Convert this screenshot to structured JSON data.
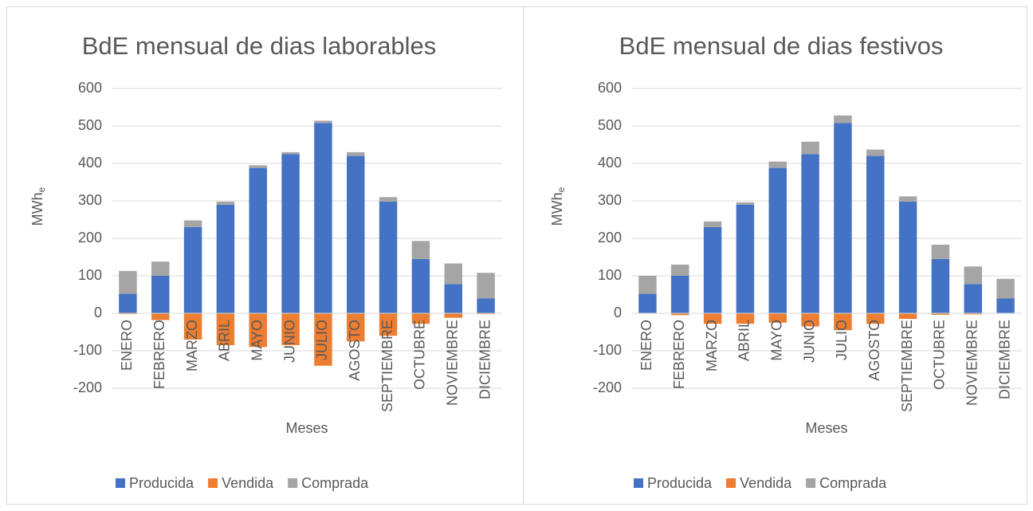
{
  "chart_data": [
    {
      "type": "bar",
      "title": "BdE mensual de dias laborables",
      "x_label": "Meses",
      "y_label": {
        "text": "MWh",
        "subscript": "e"
      },
      "categories": [
        "ENERO",
        "FEBRERO",
        "MARZO",
        "ABRIL",
        "MAYO",
        "JUNIO",
        "JULIO",
        "AGOSTO",
        "SEPTIEMBRE",
        "OCTUBRE",
        "NOVIEMBRE",
        "DICIEMBRE"
      ],
      "series": [
        {
          "name": "Producida",
          "color": "#4472c4",
          "values": [
            52,
            100,
            230,
            290,
            388,
            425,
            508,
            420,
            298,
            145,
            78,
            40
          ]
        },
        {
          "name": "Vendida",
          "color": "#ed7d31",
          "values": [
            -2,
            -18,
            -70,
            -85,
            -90,
            -85,
            -140,
            -75,
            -60,
            -28,
            -12,
            -2
          ]
        },
        {
          "name": "Comprada",
          "color": "#a5a5a5",
          "values": [
            61,
            38,
            18,
            8,
            7,
            5,
            6,
            10,
            12,
            48,
            55,
            68
          ]
        }
      ],
      "ylim": [
        -200,
        600
      ],
      "yticks": [
        -200,
        -100,
        0,
        100,
        200,
        300,
        400,
        500,
        600
      ],
      "grid": true,
      "stacked": true,
      "legend": "bottom"
    },
    {
      "type": "bar",
      "title": "BdE mensual de  dias festivos",
      "x_label": "Meses",
      "y_label": {
        "text": "MWh",
        "subscript": "e"
      },
      "categories": [
        "ENERO",
        "FEBRERO",
        "MARZO",
        "ABRIL",
        "MAYO",
        "JUNIO",
        "JULIO",
        "AGOSTO",
        "SEPTIEMBRE",
        "OCTUBRE",
        "NOVIEMBRE",
        "DICIEMBRE"
      ],
      "series": [
        {
          "name": "Producida",
          "color": "#4472c4",
          "values": [
            52,
            100,
            230,
            290,
            388,
            425,
            508,
            420,
            298,
            145,
            78,
            40
          ]
        },
        {
          "name": "Vendida",
          "color": "#ed7d31",
          "values": [
            -1,
            -5,
            -28,
            -28,
            -25,
            -35,
            -45,
            -28,
            -15,
            -4,
            -3,
            -1
          ]
        },
        {
          "name": "Comprada",
          "color": "#a5a5a5",
          "values": [
            48,
            30,
            15,
            6,
            17,
            33,
            20,
            17,
            14,
            38,
            47,
            52
          ]
        }
      ],
      "ylim": [
        -200,
        600
      ],
      "yticks": [
        -200,
        -100,
        0,
        100,
        200,
        300,
        400,
        500,
        600
      ],
      "grid": true,
      "stacked": true,
      "legend": "bottom"
    }
  ]
}
